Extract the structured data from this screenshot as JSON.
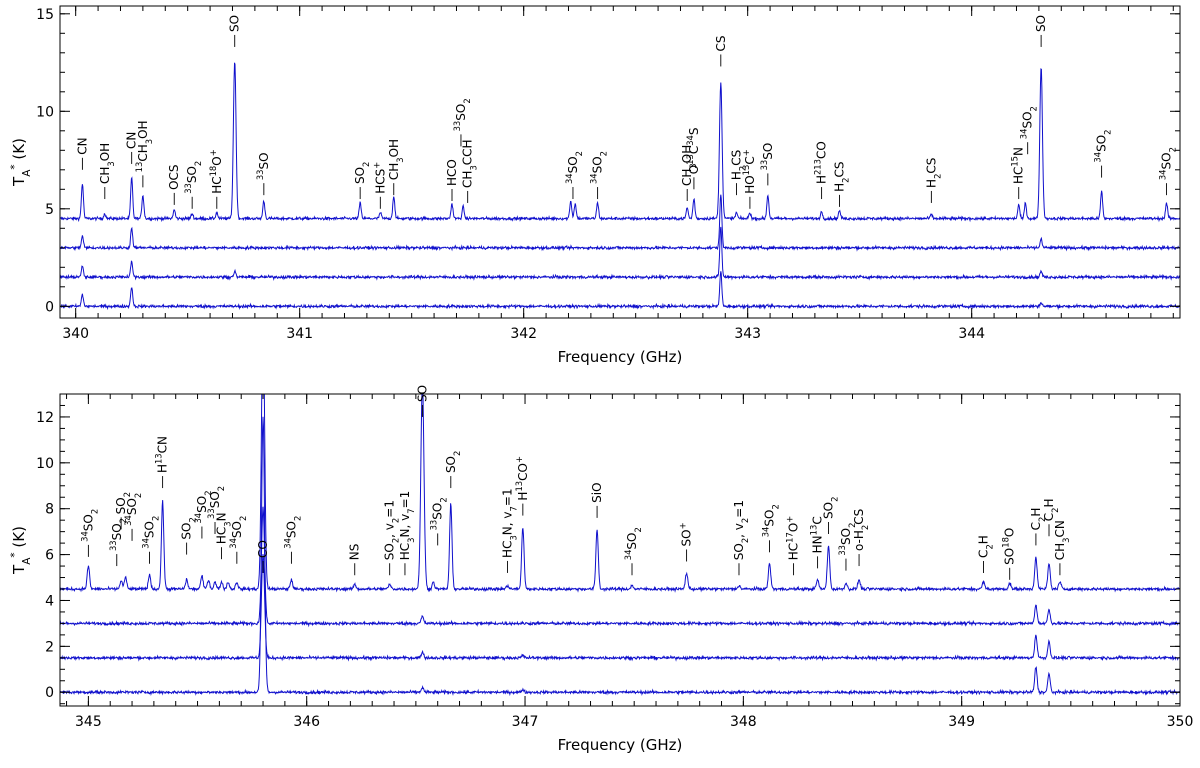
{
  "chart_data": [
    {
      "type": "line",
      "xlabel": "Frequency (GHz)",
      "ylabel": "T_A^* (K)",
      "xlim": [
        339.93,
        344.93
      ],
      "ylim": [
        -0.6,
        15.4
      ],
      "xticks": [
        "340",
        "341",
        "342",
        "343",
        "344"
      ],
      "yticks": [
        "0",
        "5",
        "10",
        "15"
      ],
      "series": [
        {
          "baseline": 4.5,
          "noise": 0.07,
          "lines": [
            [
              340.03,
              1.8
            ],
            [
              340.13,
              0.25
            ],
            [
              340.25,
              2.1
            ],
            [
              340.3,
              1.2
            ],
            [
              340.44,
              0.45
            ],
            [
              340.52,
              0.25
            ],
            [
              340.63,
              0.3
            ],
            [
              340.71,
              8.1
            ],
            [
              340.84,
              0.9
            ],
            [
              341.27,
              0.8
            ],
            [
              341.36,
              0.3
            ],
            [
              341.42,
              1.15
            ],
            [
              341.68,
              0.75
            ],
            [
              341.73,
              0.6
            ],
            [
              342.21,
              0.9
            ],
            [
              342.23,
              0.75
            ],
            [
              342.33,
              0.8
            ],
            [
              342.73,
              0.55
            ],
            [
              342.76,
              1.0
            ],
            [
              342.88,
              7.0
            ],
            [
              342.95,
              0.3
            ],
            [
              343.01,
              0.3
            ],
            [
              343.09,
              1.2
            ],
            [
              343.33,
              0.35
            ],
            [
              343.41,
              0.4
            ],
            [
              343.82,
              0.2
            ],
            [
              344.21,
              0.7
            ],
            [
              344.24,
              0.8
            ],
            [
              344.31,
              7.8
            ],
            [
              344.58,
              1.4
            ],
            [
              344.87,
              0.8
            ]
          ]
        },
        {
          "baseline": 3.0,
          "noise": 0.07,
          "lines": [
            [
              340.03,
              0.6
            ],
            [
              340.25,
              1.0
            ],
            [
              342.88,
              2.8
            ],
            [
              344.31,
              0.45
            ]
          ]
        },
        {
          "baseline": 1.5,
          "noise": 0.07,
          "lines": [
            [
              340.03,
              0.55
            ],
            [
              340.25,
              0.8
            ],
            [
              340.71,
              0.3
            ],
            [
              342.88,
              2.6
            ],
            [
              344.31,
              0.3
            ]
          ]
        },
        {
          "baseline": 0.0,
          "noise": 0.07,
          "lines": [
            [
              340.03,
              0.6
            ],
            [
              340.25,
              1.0
            ],
            [
              342.88,
              1.8
            ],
            [
              344.31,
              0.2
            ]
          ]
        }
      ],
      "annotations": [
        {
          "label": "CN",
          "x": 340.03,
          "y": 7.0
        },
        {
          "label": "CH3OH",
          "x": 340.13,
          "y": 5.5
        },
        {
          "label": "CN",
          "x": 340.25,
          "y": 7.3
        },
        {
          "label": "13CH3OH",
          "x": 340.3,
          "y": 6.1
        },
        {
          "label": "OCS",
          "x": 340.44,
          "y": 5.2
        },
        {
          "label": "33SO2",
          "x": 340.52,
          "y": 5.0
        },
        {
          "label": "HC18O+",
          "x": 340.63,
          "y": 5.0
        },
        {
          "label": "SO",
          "x": 340.71,
          "y": 13.3
        },
        {
          "label": "33SO",
          "x": 340.84,
          "y": 5.7
        },
        {
          "label": "SO2",
          "x": 341.27,
          "y": 5.5
        },
        {
          "label": "HCS+",
          "x": 341.36,
          "y": 5.0
        },
        {
          "label": "CH3OH",
          "x": 341.42,
          "y": 5.7
        },
        {
          "label": "HCO",
          "x": 341.68,
          "y": 5.4
        },
        {
          "label": "33SO2",
          "x": 341.72,
          "y": 8.2
        },
        {
          "label": "CH3CCH",
          "x": 341.75,
          "y": 5.3
        },
        {
          "label": "34SO2",
          "x": 342.22,
          "y": 5.5
        },
        {
          "label": "34SO2",
          "x": 342.33,
          "y": 5.5
        },
        {
          "label": "CH3OH",
          "x": 342.73,
          "y": 5.4
        },
        {
          "label": "O13C34S",
          "x": 342.76,
          "y": 6.0
        },
        {
          "label": "CS",
          "x": 342.88,
          "y": 12.3
        },
        {
          "label": "H2CS",
          "x": 342.95,
          "y": 5.7
        },
        {
          "label": "HO13C+",
          "x": 343.01,
          "y": 5.0
        },
        {
          "label": "33SO",
          "x": 343.09,
          "y": 6.2
        },
        {
          "label": "H213CO",
          "x": 343.33,
          "y": 5.5
        },
        {
          "label": "H2CS",
          "x": 343.41,
          "y": 5.1
        },
        {
          "label": "H2CS",
          "x": 343.82,
          "y": 5.3
        },
        {
          "label": "HC15N",
          "x": 344.21,
          "y": 5.5
        },
        {
          "label": "34SO2",
          "x": 344.25,
          "y": 7.8
        },
        {
          "label": "SO",
          "x": 344.31,
          "y": 13.3
        },
        {
          "label": "34SO2",
          "x": 344.58,
          "y": 6.6
        },
        {
          "label": "34SO2",
          "x": 344.87,
          "y": 5.7
        }
      ]
    },
    {
      "type": "line",
      "xlabel": "Frequency (GHz)",
      "ylabel": "T_A^* (K)",
      "xlim": [
        344.87,
        350.0
      ],
      "ylim": [
        -0.6,
        13.0
      ],
      "xticks": [
        "345",
        "346",
        "347",
        "348",
        "349",
        "350"
      ],
      "yticks": [
        "0",
        "2",
        "4",
        "6",
        "8",
        "10",
        "12"
      ],
      "series": [
        {
          "baseline": 4.5,
          "noise": 0.06,
          "lines": [
            [
              345.0,
              1.0
            ],
            [
              345.15,
              0.35
            ],
            [
              345.17,
              0.5
            ],
            [
              345.28,
              0.6
            ],
            [
              345.34,
              3.8
            ],
            [
              345.45,
              0.4
            ],
            [
              345.52,
              0.55
            ],
            [
              345.55,
              0.4
            ],
            [
              345.58,
              0.3
            ],
            [
              345.61,
              0.3
            ],
            [
              345.64,
              0.3
            ],
            [
              345.68,
              0.3
            ],
            [
              345.8,
              12.0
            ],
            [
              345.93,
              0.4
            ],
            [
              346.22,
              0.2
            ],
            [
              346.38,
              0.2
            ],
            [
              346.53,
              9.0
            ],
            [
              346.58,
              0.3
            ],
            [
              346.66,
              3.7
            ],
            [
              346.92,
              0.15
            ],
            [
              346.99,
              2.7
            ],
            [
              347.33,
              2.6
            ],
            [
              347.49,
              0.15
            ],
            [
              347.74,
              0.7
            ],
            [
              347.98,
              0.15
            ],
            [
              348.12,
              1.1
            ],
            [
              348.34,
              0.4
            ],
            [
              348.39,
              1.9
            ],
            [
              348.47,
              0.25
            ],
            [
              348.53,
              0.4
            ],
            [
              349.1,
              0.3
            ],
            [
              349.22,
              0.25
            ],
            [
              349.34,
              1.4
            ],
            [
              349.4,
              1.1
            ],
            [
              349.45,
              0.3
            ]
          ]
        },
        {
          "baseline": 3.0,
          "noise": 0.06,
          "lines": [
            [
              345.8,
              5.0
            ],
            [
              346.53,
              0.3
            ],
            [
              349.34,
              0.8
            ],
            [
              349.4,
              0.6
            ]
          ]
        },
        {
          "baseline": 1.5,
          "noise": 0.06,
          "lines": [
            [
              345.8,
              4.5
            ],
            [
              346.53,
              0.25
            ],
            [
              346.99,
              0.1
            ],
            [
              349.34,
              1.0
            ],
            [
              349.4,
              0.7
            ]
          ]
        },
        {
          "baseline": 0.0,
          "noise": 0.06,
          "lines": [
            [
              345.8,
              12.0
            ],
            [
              346.53,
              0.2
            ],
            [
              346.99,
              0.12
            ],
            [
              349.34,
              1.1
            ],
            [
              349.4,
              0.8
            ]
          ]
        }
      ],
      "annotations": [
        {
          "label": "34SO2",
          "x": 345.0,
          "y": 5.9
        },
        {
          "label": "33SO2",
          "x": 345.13,
          "y": 5.5
        },
        {
          "label": "SO2",
          "x": 345.15,
          "y": 7.1
        },
        {
          "label": "34SO2",
          "x": 345.2,
          "y": 6.6
        },
        {
          "label": "34SO2",
          "x": 345.28,
          "y": 5.6
        },
        {
          "label": "H13CN",
          "x": 345.34,
          "y": 8.9
        },
        {
          "label": "SO2",
          "x": 345.45,
          "y": 6.0
        },
        {
          "label": "34SO2",
          "x": 345.52,
          "y": 6.7
        },
        {
          "label": "33SO2",
          "x": 345.58,
          "y": 6.9
        },
        {
          "label": "HC3N",
          "x": 345.61,
          "y": 5.8
        },
        {
          "label": "34SO2",
          "x": 345.68,
          "y": 5.6
        },
        {
          "label": "CO",
          "x": 345.8,
          "y": 5.2
        },
        {
          "label": "34SO2",
          "x": 345.93,
          "y": 5.6
        },
        {
          "label": "NS",
          "x": 346.22,
          "y": 5.1
        },
        {
          "label": "SO2, v2=1",
          "x": 346.38,
          "y": 5.1
        },
        {
          "label": "HC3N, v7=1",
          "x": 346.45,
          "y": 5.1
        },
        {
          "label": "SO",
          "x": 346.53,
          "y": 12.0
        },
        {
          "label": "33SO2",
          "x": 346.6,
          "y": 6.4
        },
        {
          "label": "SO2",
          "x": 346.66,
          "y": 8.9
        },
        {
          "label": "HC3N, v7=1",
          "x": 346.92,
          "y": 5.2
        },
        {
          "label": "H13CO+",
          "x": 346.99,
          "y": 7.7
        },
        {
          "label": "SiO",
          "x": 347.33,
          "y": 7.6
        },
        {
          "label": "34SO2",
          "x": 347.49,
          "y": 5.1
        },
        {
          "label": "SO+",
          "x": 347.74,
          "y": 5.7
        },
        {
          "label": "SO2, v2=1",
          "x": 347.98,
          "y": 5.1
        },
        {
          "label": "34SO2",
          "x": 348.12,
          "y": 6.1
        },
        {
          "label": "HC17O+",
          "x": 348.23,
          "y": 5.1
        },
        {
          "label": "HN13C",
          "x": 348.34,
          "y": 5.4
        },
        {
          "label": "SO2",
          "x": 348.39,
          "y": 6.9
        },
        {
          "label": "33SO2",
          "x": 348.47,
          "y": 5.3
        },
        {
          "label": "o-H2CS",
          "x": 348.53,
          "y": 5.5
        },
        {
          "label": "C2H",
          "x": 349.1,
          "y": 5.2
        },
        {
          "label": "SO18O",
          "x": 349.22,
          "y": 4.9
        },
        {
          "label": "C2H",
          "x": 349.34,
          "y": 6.4
        },
        {
          "label": "C2H",
          "x": 349.4,
          "y": 6.8
        },
        {
          "label": "CH3CN",
          "x": 349.45,
          "y": 5.1
        }
      ]
    }
  ]
}
